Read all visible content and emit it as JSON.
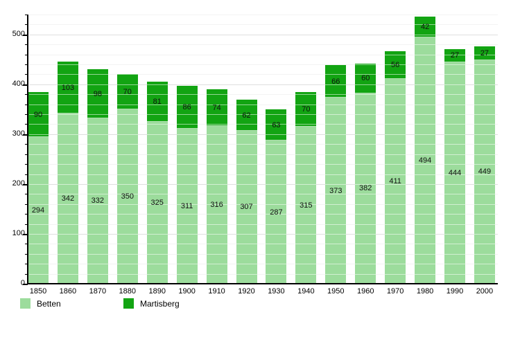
{
  "chart_data": {
    "type": "bar",
    "stacked": true,
    "title": "",
    "xlabel": "",
    "ylabel": "",
    "categories": [
      "1850",
      "1860",
      "1870",
      "1880",
      "1890",
      "1900",
      "1910",
      "1920",
      "1930",
      "1940",
      "1950",
      "1960",
      "1970",
      "1980",
      "1990",
      "2000"
    ],
    "series": [
      {
        "name": "Betten",
        "color": "#9cdc9c",
        "values": [
          294,
          342,
          332,
          350,
          325,
          311,
          316,
          307,
          287,
          315,
          373,
          382,
          411,
          494,
          444,
          449
        ]
      },
      {
        "name": "Martisberg",
        "color": "#12a412",
        "values": [
          90,
          103,
          98,
          70,
          81,
          86,
          74,
          62,
          63,
          70,
          66,
          60,
          56,
          42,
          27,
          27
        ]
      }
    ],
    "ylim": [
      0,
      540
    ],
    "yticks": [
      0,
      100,
      200,
      300,
      400,
      500
    ],
    "grid": true,
    "grid_minor_step": 20,
    "grid_major_step": 100,
    "legend_position": "bottom-left",
    "value_labels": "inside-segments"
  }
}
